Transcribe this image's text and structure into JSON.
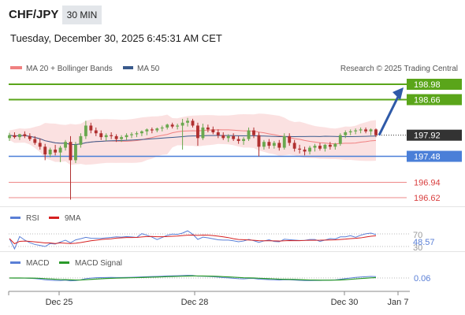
{
  "header": {
    "symbol": "CHF/JPY",
    "timeframe": "30 MIN",
    "datetime": "Tuesday, December 30, 2025 6:45:31 AM CET"
  },
  "legend": {
    "ma20_label": "MA 20 + Bollinger Bands",
    "ma50_label": "MA 50",
    "research": "Research © 2025 Trading Central",
    "ma20_color": "#f08080",
    "ma50_color": "#3a5a8c"
  },
  "levels": [
    {
      "value": "198.98",
      "kind": "target",
      "color": "#5aa51a"
    },
    {
      "value": "198.66",
      "kind": "target",
      "color": "#5aa51a"
    },
    {
      "value": "197.92",
      "kind": "last",
      "color": "#333333"
    },
    {
      "value": "197.48",
      "kind": "pivot",
      "color": "#4a7fd8"
    },
    {
      "value": "196.94",
      "kind": "support",
      "color": "#d94040"
    },
    {
      "value": "196.62",
      "kind": "support",
      "color": "#d94040"
    }
  ],
  "rsi": {
    "label": "RSI",
    "ma_label": "9MA",
    "value": "48.57",
    "level70": "70",
    "level30": "30",
    "color": "#5a7fd6",
    "ma_color": "#d62020"
  },
  "macd": {
    "label": "MACD",
    "signal_label": "MACD Signal",
    "value": "0.06",
    "color": "#5a7fd6",
    "signal_color": "#2a9a2a"
  },
  "x_axis": [
    "Dec 25",
    "Dec 28",
    "Dec 30",
    "Jan 7"
  ],
  "chart_data": {
    "type": "candlestick",
    "y_range": [
      196.2,
      199.4
    ],
    "candles": [
      {
        "o": 197.86,
        "h": 197.97,
        "l": 197.8,
        "c": 197.92
      },
      {
        "o": 197.92,
        "h": 197.98,
        "l": 197.85,
        "c": 197.88
      },
      {
        "o": 197.88,
        "h": 197.95,
        "l": 197.82,
        "c": 197.94
      },
      {
        "o": 197.94,
        "h": 198.0,
        "l": 197.86,
        "c": 197.9
      },
      {
        "o": 197.9,
        "h": 197.96,
        "l": 197.8,
        "c": 197.84
      },
      {
        "o": 197.84,
        "h": 197.9,
        "l": 197.72,
        "c": 197.76
      },
      {
        "o": 197.76,
        "h": 197.85,
        "l": 197.62,
        "c": 197.68
      },
      {
        "o": 197.68,
        "h": 197.74,
        "l": 197.4,
        "c": 197.52
      },
      {
        "o": 197.52,
        "h": 197.66,
        "l": 197.46,
        "c": 197.62
      },
      {
        "o": 197.62,
        "h": 197.72,
        "l": 197.5,
        "c": 197.56
      },
      {
        "o": 197.56,
        "h": 197.7,
        "l": 197.36,
        "c": 197.66
      },
      {
        "o": 197.66,
        "h": 197.82,
        "l": 197.6,
        "c": 197.78
      },
      {
        "o": 197.78,
        "h": 197.9,
        "l": 196.58,
        "c": 197.4
      },
      {
        "o": 197.4,
        "h": 197.78,
        "l": 197.34,
        "c": 197.72
      },
      {
        "o": 197.72,
        "h": 197.96,
        "l": 197.66,
        "c": 197.9
      },
      {
        "o": 197.9,
        "h": 198.22,
        "l": 197.84,
        "c": 198.12
      },
      {
        "o": 198.12,
        "h": 198.18,
        "l": 197.96,
        "c": 198.02
      },
      {
        "o": 198.02,
        "h": 198.08,
        "l": 197.9,
        "c": 197.96
      },
      {
        "o": 197.96,
        "h": 198.02,
        "l": 197.82,
        "c": 197.88
      },
      {
        "o": 197.88,
        "h": 197.96,
        "l": 197.8,
        "c": 197.92
      },
      {
        "o": 197.92,
        "h": 197.98,
        "l": 197.84,
        "c": 197.9
      },
      {
        "o": 197.9,
        "h": 197.94,
        "l": 197.78,
        "c": 197.84
      },
      {
        "o": 197.84,
        "h": 197.92,
        "l": 197.78,
        "c": 197.88
      },
      {
        "o": 197.88,
        "h": 197.96,
        "l": 197.82,
        "c": 197.92
      },
      {
        "o": 197.92,
        "h": 197.98,
        "l": 197.86,
        "c": 197.94
      },
      {
        "o": 197.94,
        "h": 198.0,
        "l": 197.88,
        "c": 197.96
      },
      {
        "o": 197.96,
        "h": 198.02,
        "l": 197.9,
        "c": 198.0
      },
      {
        "o": 198.0,
        "h": 198.06,
        "l": 197.92,
        "c": 198.04
      },
      {
        "o": 198.04,
        "h": 198.08,
        "l": 197.96,
        "c": 198.02
      },
      {
        "o": 198.02,
        "h": 198.08,
        "l": 197.98,
        "c": 198.06
      },
      {
        "o": 198.06,
        "h": 198.12,
        "l": 198.0,
        "c": 198.08
      },
      {
        "o": 198.08,
        "h": 198.16,
        "l": 198.04,
        "c": 198.14
      },
      {
        "o": 198.14,
        "h": 198.18,
        "l": 198.06,
        "c": 198.1
      },
      {
        "o": 198.1,
        "h": 198.16,
        "l": 198.04,
        "c": 198.12
      },
      {
        "o": 198.12,
        "h": 198.26,
        "l": 197.62,
        "c": 198.18
      },
      {
        "o": 198.18,
        "h": 198.28,
        "l": 198.1,
        "c": 198.22
      },
      {
        "o": 198.22,
        "h": 198.26,
        "l": 198.08,
        "c": 198.12
      },
      {
        "o": 198.12,
        "h": 198.18,
        "l": 197.7,
        "c": 197.86
      },
      {
        "o": 197.86,
        "h": 198.16,
        "l": 197.82,
        "c": 198.08
      },
      {
        "o": 198.08,
        "h": 198.14,
        "l": 197.98,
        "c": 198.04
      },
      {
        "o": 198.04,
        "h": 198.1,
        "l": 197.94,
        "c": 197.98
      },
      {
        "o": 197.98,
        "h": 198.04,
        "l": 197.86,
        "c": 197.92
      },
      {
        "o": 197.92,
        "h": 197.98,
        "l": 197.82,
        "c": 197.86
      },
      {
        "o": 197.86,
        "h": 197.94,
        "l": 197.78,
        "c": 197.9
      },
      {
        "o": 197.9,
        "h": 197.96,
        "l": 197.8,
        "c": 197.84
      },
      {
        "o": 197.84,
        "h": 197.9,
        "l": 197.74,
        "c": 197.8
      },
      {
        "o": 197.8,
        "h": 197.88,
        "l": 197.72,
        "c": 197.84
      },
      {
        "o": 197.84,
        "h": 198.08,
        "l": 197.8,
        "c": 198.02
      },
      {
        "o": 198.02,
        "h": 198.08,
        "l": 197.86,
        "c": 197.92
      },
      {
        "o": 197.92,
        "h": 197.98,
        "l": 197.48,
        "c": 197.68
      },
      {
        "o": 197.68,
        "h": 197.82,
        "l": 197.62,
        "c": 197.78
      },
      {
        "o": 197.78,
        "h": 197.84,
        "l": 197.64,
        "c": 197.7
      },
      {
        "o": 197.7,
        "h": 197.8,
        "l": 197.64,
        "c": 197.76
      },
      {
        "o": 197.76,
        "h": 197.82,
        "l": 197.6,
        "c": 197.66
      },
      {
        "o": 197.66,
        "h": 197.96,
        "l": 197.62,
        "c": 197.9
      },
      {
        "o": 197.9,
        "h": 197.96,
        "l": 197.7,
        "c": 197.76
      },
      {
        "o": 197.76,
        "h": 197.82,
        "l": 197.58,
        "c": 197.64
      },
      {
        "o": 197.64,
        "h": 197.72,
        "l": 197.54,
        "c": 197.62
      },
      {
        "o": 197.62,
        "h": 197.68,
        "l": 197.5,
        "c": 197.58
      },
      {
        "o": 197.58,
        "h": 197.7,
        "l": 197.52,
        "c": 197.66
      },
      {
        "o": 197.66,
        "h": 197.74,
        "l": 197.58,
        "c": 197.7
      },
      {
        "o": 197.7,
        "h": 197.76,
        "l": 197.6,
        "c": 197.64
      },
      {
        "o": 197.64,
        "h": 197.74,
        "l": 197.58,
        "c": 197.72
      },
      {
        "o": 197.72,
        "h": 197.78,
        "l": 197.62,
        "c": 197.68
      },
      {
        "o": 197.68,
        "h": 197.76,
        "l": 197.62,
        "c": 197.74
      },
      {
        "o": 197.74,
        "h": 197.96,
        "l": 197.7,
        "c": 197.92
      },
      {
        "o": 197.92,
        "h": 198.02,
        "l": 197.86,
        "c": 197.98
      },
      {
        "o": 197.98,
        "h": 198.04,
        "l": 197.92,
        "c": 198.0
      },
      {
        "o": 198.0,
        "h": 198.06,
        "l": 197.94,
        "c": 198.02
      },
      {
        "o": 198.02,
        "h": 198.08,
        "l": 197.96,
        "c": 198.04
      },
      {
        "o": 198.04,
        "h": 198.08,
        "l": 197.96,
        "c": 198.0
      },
      {
        "o": 198.0,
        "h": 198.06,
        "l": 197.92,
        "c": 198.04
      },
      {
        "o": 198.04,
        "h": 198.06,
        "l": 197.88,
        "c": 197.92
      }
    ],
    "projection": {
      "from": 197.92,
      "to": 198.98
    }
  }
}
